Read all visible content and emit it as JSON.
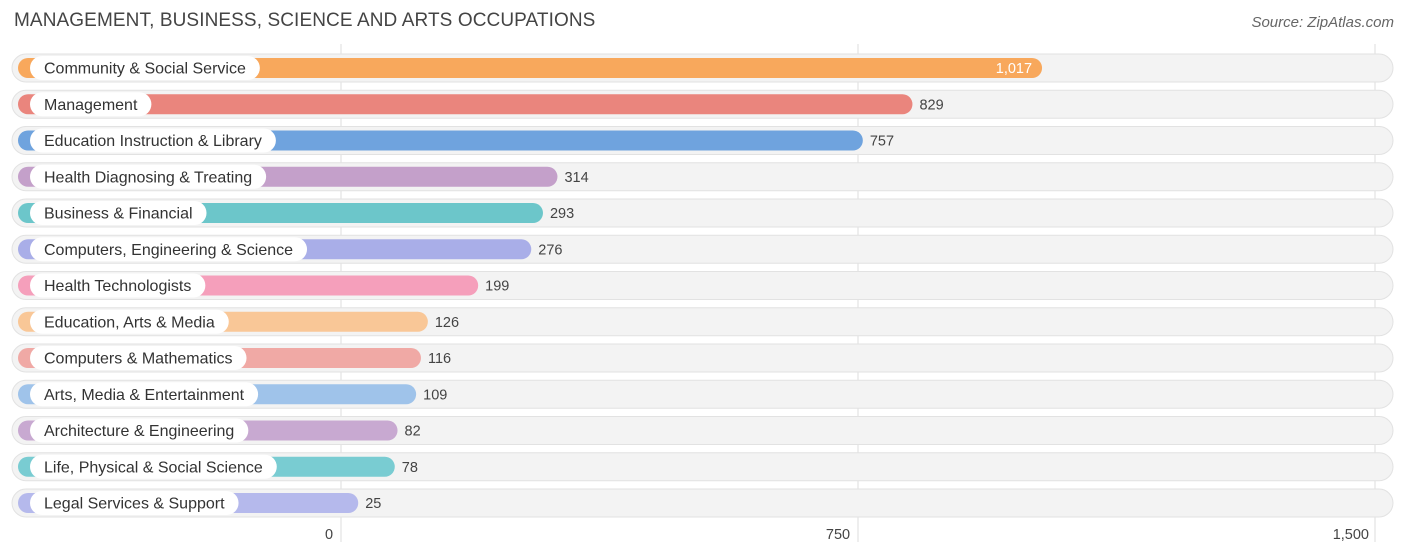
{
  "header": {
    "title": "MANAGEMENT, BUSINESS, SCIENCE AND ARTS OCCUPATIONS",
    "source": "Source: ZipAtlas.com"
  },
  "chart_data": {
    "type": "bar",
    "orientation": "horizontal",
    "title": "MANAGEMENT, BUSINESS, SCIENCE AND ARTS OCCUPATIONS",
    "xlabel": "",
    "ylabel": "",
    "xlim": [
      0,
      1500
    ],
    "grid": true,
    "categories": [
      "Community & Social Service",
      "Management",
      "Education Instruction & Library",
      "Health Diagnosing & Treating",
      "Business & Financial",
      "Computers, Engineering & Science",
      "Health Technologists",
      "Education, Arts & Media",
      "Computers & Mathematics",
      "Arts, Media & Entertainment",
      "Architecture & Engineering",
      "Life, Physical & Social Science",
      "Legal Services & Support"
    ],
    "values": [
      1017,
      829,
      757,
      314,
      293,
      276,
      199,
      126,
      116,
      109,
      82,
      78,
      25
    ],
    "value_labels": [
      "1,017",
      "829",
      "757",
      "314",
      "293",
      "276",
      "199",
      "126",
      "116",
      "109",
      "82",
      "78",
      "25"
    ],
    "colors": [
      "#f8a85c",
      "#ea857d",
      "#6fa3de",
      "#c4a0ca",
      "#6cc6ca",
      "#a9aee8",
      "#f59fbb",
      "#f9c797",
      "#f0a9a5",
      "#9fc3ea",
      "#c8a9d1",
      "#79ccd2",
      "#b5b9ec"
    ],
    "ticks": [
      {
        "value": 0,
        "label": "0"
      },
      {
        "value": 750,
        "label": "750"
      },
      {
        "value": 1500,
        "label": "1,500"
      }
    ]
  }
}
